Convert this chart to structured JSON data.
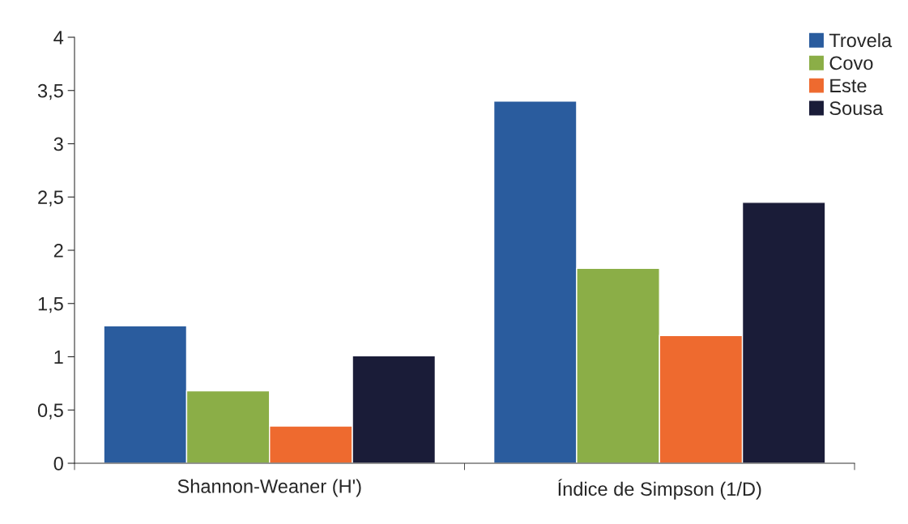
{
  "chart_data": {
    "type": "bar",
    "categories": [
      "Shannon-Weaner (H')",
      "Índice de Simpson (1/D)"
    ],
    "series": [
      {
        "name": "Trovela",
        "color": "#2a5c9e",
        "values": [
          1.29,
          3.4
        ]
      },
      {
        "name": "Covo",
        "color": "#8bae47",
        "values": [
          0.68,
          1.83
        ]
      },
      {
        "name": "Este",
        "color": "#ee6a2f",
        "values": [
          0.35,
          1.2
        ]
      },
      {
        "name": "Sousa",
        "color": "#1a1c38",
        "values": [
          1.01,
          2.45
        ]
      }
    ],
    "ylim": [
      0,
      4
    ],
    "yticks": [
      0,
      {
        "value": 0.5,
        "label": "0,5"
      },
      1,
      {
        "value": 1.5,
        "label": "1,5"
      },
      2,
      {
        "value": 2.5,
        "label": "2,5"
      },
      3,
      {
        "value": 3.5,
        "label": "3,5"
      },
      4
    ],
    "grid": false,
    "legend": "top right"
  }
}
